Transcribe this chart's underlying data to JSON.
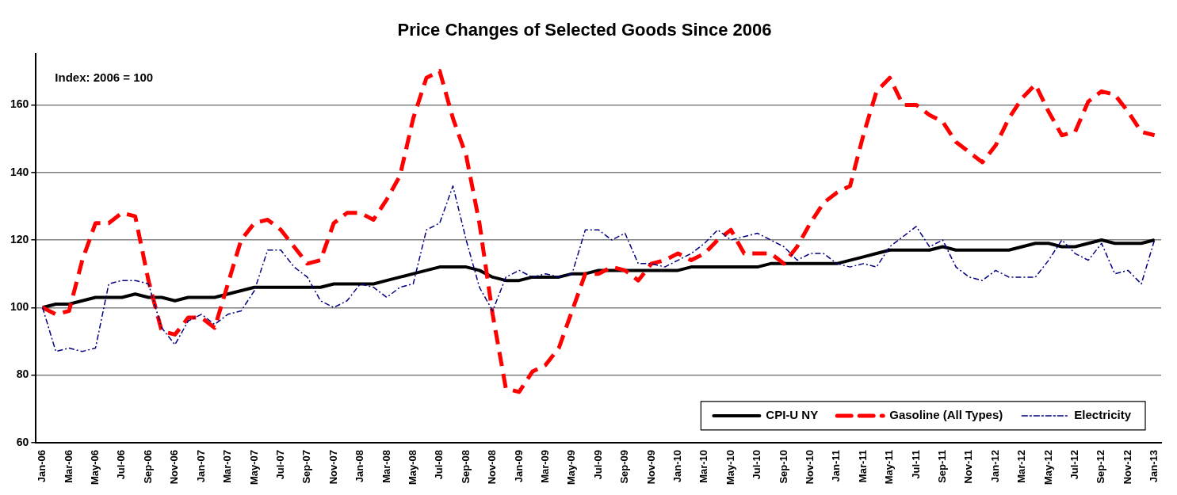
{
  "chart_data": {
    "type": "line",
    "title": "Price Changes of Selected Goods Since 2006",
    "annotations": [
      "Index: 2006 = 100"
    ],
    "categories": [
      "Jan-06",
      null,
      "Mar-06",
      null,
      "May-06",
      null,
      "Jul-06",
      null,
      "Sep-06",
      null,
      "Nov-06",
      null,
      "Jan-07",
      null,
      "Mar-07",
      null,
      "May-07",
      null,
      "Jul-07",
      null,
      "Sep-07",
      null,
      "Nov-07",
      null,
      "Jan-08",
      null,
      "Mar-08",
      null,
      "May-08",
      null,
      "Jul-08",
      null,
      "Sep-08",
      null,
      "Nov-08",
      null,
      "Jan-09",
      null,
      "Mar-09",
      null,
      "May-09",
      null,
      "Jul-09",
      null,
      "Sep-09",
      null,
      "Nov-09",
      null,
      "Jan-10",
      null,
      "Mar-10",
      null,
      "May-10",
      null,
      "Jul-10",
      null,
      "Sep-10",
      null,
      "Nov-10",
      null,
      "Jan-11",
      null,
      "Mar-11",
      null,
      "May-11",
      null,
      "Jul-11",
      null,
      "Sep-11",
      null,
      "Nov-11",
      null,
      "Jan-12",
      null,
      "Mar-12",
      null,
      "May-12",
      null,
      "Jul-12",
      null,
      "Sep-12",
      null,
      "Nov-12",
      null,
      "Jan-13"
    ],
    "series": [
      {
        "name": "CPI-U NY",
        "color": "#000000",
        "line_style": "solid",
        "values": [
          100,
          101,
          101,
          102,
          103,
          103,
          103,
          104,
          103,
          103,
          102,
          103,
          103,
          103,
          104,
          105,
          106,
          106,
          106,
          106,
          106,
          106,
          107,
          107,
          107,
          107,
          108,
          109,
          110,
          111,
          112,
          112,
          112,
          111,
          109,
          108,
          108,
          109,
          109,
          109,
          110,
          110,
          111,
          111,
          111,
          111,
          111,
          111,
          111,
          112,
          112,
          112,
          112,
          112,
          112,
          113,
          113,
          113,
          113,
          113,
          113,
          114,
          115,
          116,
          117,
          117,
          117,
          117,
          118,
          117,
          117,
          117,
          117,
          117,
          118,
          119,
          119,
          118,
          118,
          119,
          120,
          119,
          119,
          119,
          120
        ]
      },
      {
        "name": "Gasoline (All Types)",
        "color": "#ff0000",
        "line_style": "dashed",
        "values": [
          100,
          98,
          99,
          114,
          125,
          125,
          128,
          127,
          108,
          93,
          92,
          97,
          97,
          94,
          107,
          120,
          125,
          126,
          123,
          118,
          113,
          114,
          125,
          128,
          128,
          126,
          132,
          139,
          156,
          168,
          170,
          156,
          145,
          125,
          98,
          76,
          75,
          81,
          83,
          88,
          99,
          110,
          110,
          112,
          111,
          108,
          113,
          114,
          116,
          114,
          116,
          120,
          123,
          116,
          116,
          116,
          113,
          118,
          125,
          131,
          134,
          136,
          151,
          164,
          168,
          160,
          160,
          157,
          155,
          149,
          146,
          143,
          148,
          156,
          162,
          166,
          158,
          151,
          152,
          161,
          164,
          163,
          158,
          152,
          151
        ]
      },
      {
        "name": "Electricity",
        "color": "#000080",
        "line_style": "dashed",
        "values": [
          100,
          87,
          88,
          87,
          88,
          107,
          108,
          108,
          107,
          94,
          89,
          96,
          98,
          95,
          98,
          99,
          105,
          117,
          117,
          112,
          109,
          102,
          100,
          102,
          107,
          106,
          103,
          106,
          107,
          123,
          125,
          136,
          120,
          106,
          99,
          109,
          111,
          109,
          110,
          109,
          110,
          123,
          123,
          120,
          122,
          113,
          113,
          112,
          114,
          116,
          119,
          123,
          120,
          121,
          122,
          120,
          118,
          114,
          116,
          116,
          113,
          112,
          113,
          112,
          118,
          121,
          124,
          118,
          120,
          112,
          109,
          108,
          111,
          109,
          109,
          109,
          114,
          120,
          116,
          114,
          119,
          110,
          111,
          107,
          120
        ]
      }
    ],
    "ylim": [
      60,
      175
    ],
    "yticks": [
      60,
      80,
      100,
      120,
      140,
      160
    ],
    "grid": "y",
    "legend": "bottom right",
    "marker": "none"
  }
}
